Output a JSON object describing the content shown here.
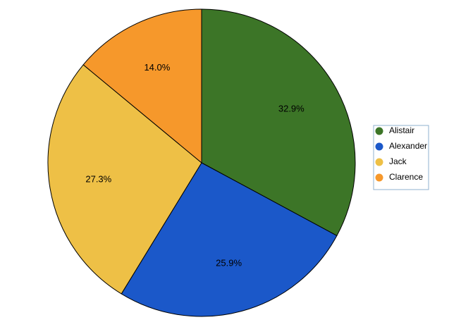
{
  "chart_data": {
    "type": "pie",
    "labels": [
      "Alistair",
      "Alexander",
      "Jack",
      "Clarence"
    ],
    "values": [
      32.9,
      25.9,
      27.3,
      14.0
    ],
    "value_labels": [
      "32.9%",
      "25.9%",
      "27.3%",
      "14.0%"
    ],
    "colors": [
      "#3c7527",
      "#1b58c9",
      "#eec046",
      "#f6982b"
    ],
    "start_angle_deg": 0,
    "direction": "clockwise",
    "legend": {
      "position": "right",
      "entries": [
        "Alistair",
        "Alexander",
        "Jack",
        "Clarence"
      ]
    }
  }
}
